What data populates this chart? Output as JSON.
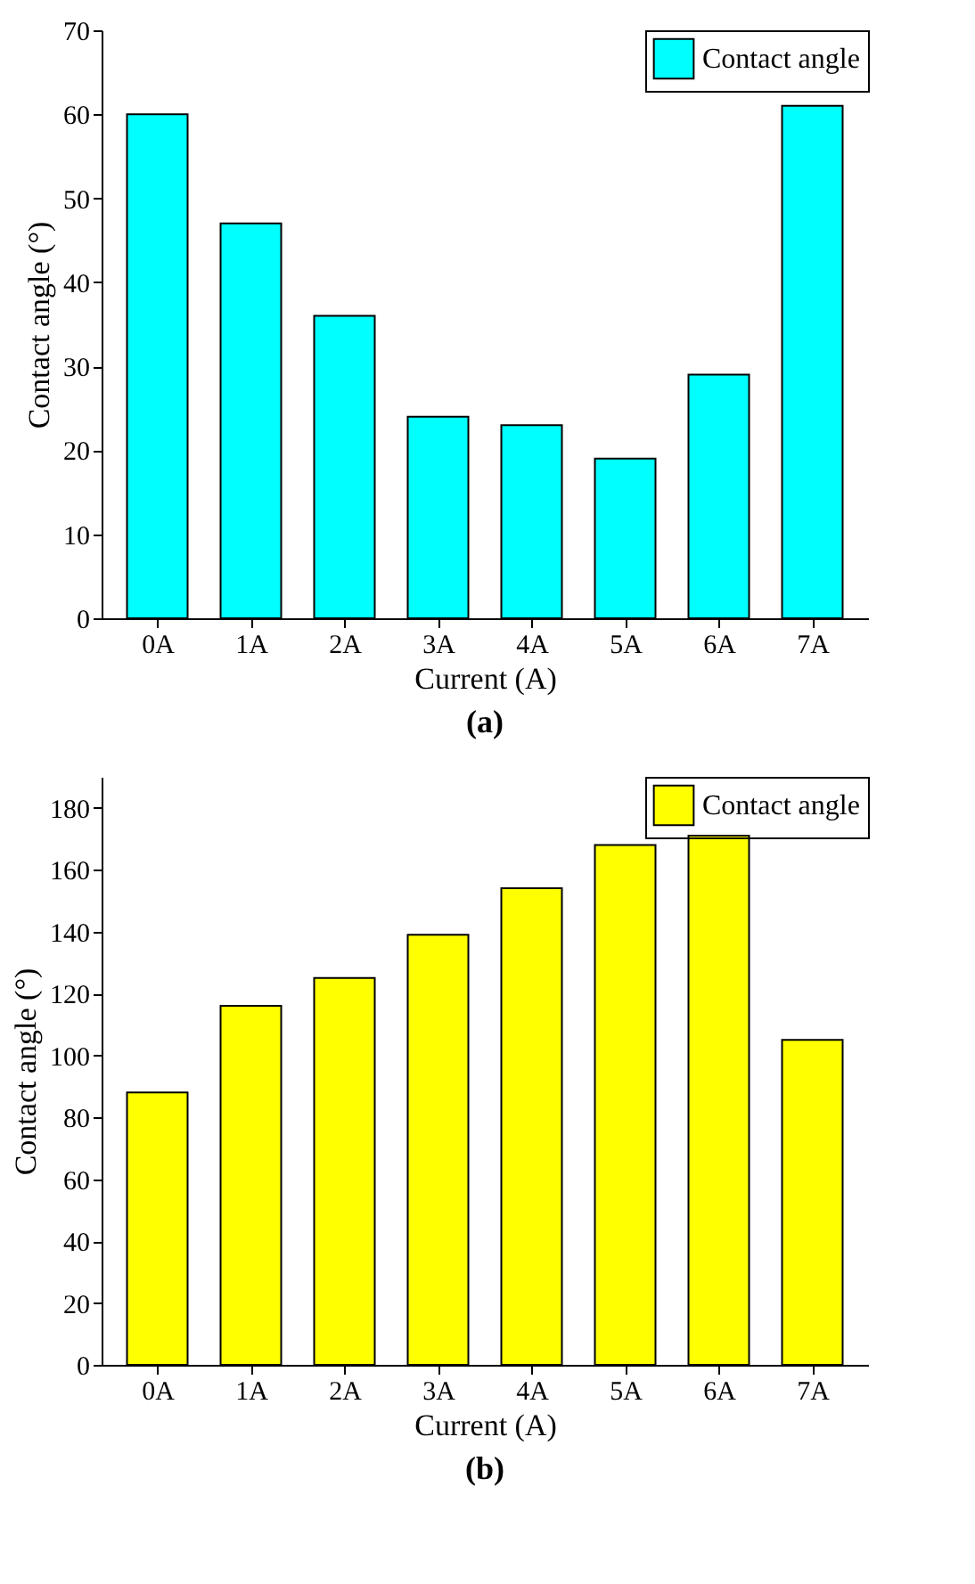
{
  "chart_data": [
    {
      "type": "bar",
      "categories": [
        "0A",
        "1A",
        "2A",
        "3A",
        "4A",
        "5A",
        "6A",
        "7A"
      ],
      "series": [
        {
          "name": "Contact angle",
          "color": "#00ffff",
          "values": [
            60,
            47,
            36,
            24,
            23,
            19,
            29,
            61
          ]
        }
      ],
      "xlabel": "Current (A)",
      "ylabel": "Contact angle (°)",
      "ylim": [
        0,
        70
      ],
      "yticks": [
        0,
        10,
        20,
        30,
        40,
        50,
        60,
        70
      ],
      "legend": "top right",
      "annotations": [
        "(a)"
      ]
    },
    {
      "type": "bar",
      "categories": [
        "0A",
        "1A",
        "2A",
        "3A",
        "4A",
        "5A",
        "6A",
        "7A"
      ],
      "series": [
        {
          "name": "Contact angle",
          "color": "#ffff00",
          "values": [
            88,
            116,
            125,
            139,
            154,
            168,
            171,
            105
          ]
        }
      ],
      "xlabel": "Current (A)",
      "ylabel": "Contact angle (°)",
      "ylim": [
        0,
        190
      ],
      "yticks": [
        0,
        20,
        40,
        60,
        80,
        100,
        120,
        140,
        160,
        180
      ],
      "legend": "top right",
      "annotations": [
        "(b)"
      ]
    }
  ]
}
